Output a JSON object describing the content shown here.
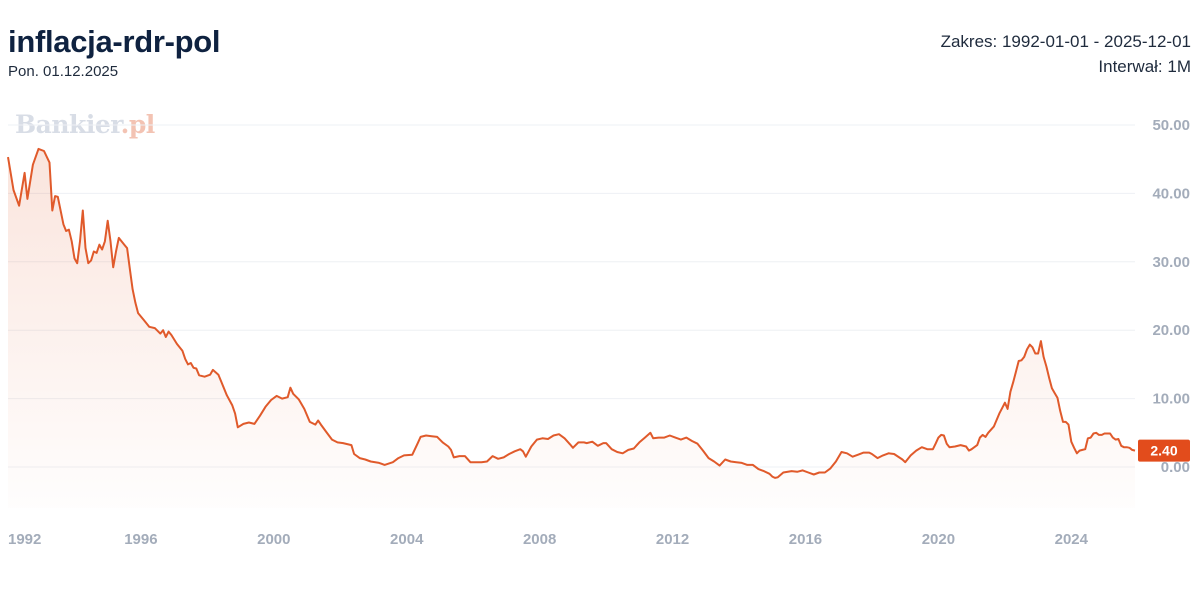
{
  "header": {
    "title": "inflacja-rdr-pol",
    "date": "Pon. 01.12.2025",
    "range": "Zakres: 1992-01-01 - 2025-12-01",
    "interval": "Interwał: 1M"
  },
  "watermark": {
    "text": "Bankier",
    "suffix": ".pl"
  },
  "colors": {
    "line": "#e05a2b",
    "label_bg": "#e24c1c",
    "tick": "#a3acba",
    "grid": "#eef0f4",
    "title": "#0f2240"
  },
  "chart_data": {
    "type": "area",
    "x_label": "",
    "y_label": "",
    "xlim": [
      "1992-01",
      "2025-12"
    ],
    "ylim": [
      -6,
      52
    ],
    "yticks": [
      0,
      10,
      20,
      30,
      40,
      50
    ],
    "ytick_labels": [
      "0.00",
      "10.00",
      "20.00",
      "30.00",
      "40.00",
      "50.00"
    ],
    "xticks": [
      "1992",
      "1996",
      "2000",
      "2004",
      "2008",
      "2012",
      "2016",
      "2020",
      "2024"
    ],
    "last_value_label": "2.40",
    "points": [
      [
        "1992-01",
        45.3
      ],
      [
        "1992-03",
        40.5
      ],
      [
        "1992-05",
        38.2
      ],
      [
        "1992-07",
        43.0
      ],
      [
        "1992-08",
        39.2
      ],
      [
        "1992-10",
        44.2
      ],
      [
        "1992-12",
        46.5
      ],
      [
        "1993-02",
        46.2
      ],
      [
        "1993-04",
        44.5
      ],
      [
        "1993-05",
        37.5
      ],
      [
        "1993-06",
        39.6
      ],
      [
        "1993-07",
        39.5
      ],
      [
        "1993-09",
        35.5
      ],
      [
        "1993-10",
        34.5
      ],
      [
        "1993-11",
        34.7
      ],
      [
        "1993-12",
        33.0
      ],
      [
        "1994-01",
        30.5
      ],
      [
        "1994-02",
        29.8
      ],
      [
        "1994-03",
        33.0
      ],
      [
        "1994-04",
        37.5
      ],
      [
        "1994-05",
        32.0
      ],
      [
        "1994-06",
        29.8
      ],
      [
        "1994-07",
        30.2
      ],
      [
        "1994-08",
        31.5
      ],
      [
        "1994-09",
        31.3
      ],
      [
        "1994-10",
        32.5
      ],
      [
        "1994-11",
        31.8
      ],
      [
        "1994-12",
        33.0
      ],
      [
        "1995-01",
        36.0
      ],
      [
        "1995-02",
        33.0
      ],
      [
        "1995-03",
        29.2
      ],
      [
        "1995-04",
        31.5
      ],
      [
        "1995-05",
        33.5
      ],
      [
        "1995-06",
        33.0
      ],
      [
        "1995-07",
        32.5
      ],
      [
        "1995-08",
        32.0
      ],
      [
        "1995-09",
        29.0
      ],
      [
        "1995-10",
        26.0
      ],
      [
        "1995-11",
        24.0
      ],
      [
        "1995-12",
        22.5
      ],
      [
        "1996-02",
        21.5
      ],
      [
        "1996-04",
        20.5
      ],
      [
        "1996-06",
        20.3
      ],
      [
        "1996-08",
        19.5
      ],
      [
        "1996-09",
        20.0
      ],
      [
        "1996-10",
        19.0
      ],
      [
        "1996-11",
        19.8
      ],
      [
        "1996-12",
        19.3
      ],
      [
        "1997-02",
        18.0
      ],
      [
        "1997-04",
        17.0
      ],
      [
        "1997-05",
        15.8
      ],
      [
        "1997-06",
        15.0
      ],
      [
        "1997-07",
        15.2
      ],
      [
        "1997-08",
        14.5
      ],
      [
        "1997-09",
        14.4
      ],
      [
        "1997-10",
        13.4
      ],
      [
        "1997-12",
        13.2
      ],
      [
        "1998-02",
        13.5
      ],
      [
        "1998-03",
        14.2
      ],
      [
        "1998-05",
        13.5
      ],
      [
        "1998-06",
        12.5
      ],
      [
        "1998-08",
        10.5
      ],
      [
        "1998-10",
        9.0
      ],
      [
        "1998-11",
        7.8
      ],
      [
        "1998-12",
        5.8
      ],
      [
        "1999-02",
        6.3
      ],
      [
        "1999-04",
        6.5
      ],
      [
        "1999-06",
        6.3
      ],
      [
        "1999-08",
        7.5
      ],
      [
        "1999-10",
        8.8
      ],
      [
        "1999-12",
        9.8
      ],
      [
        "2000-02",
        10.4
      ],
      [
        "2000-04",
        10.0
      ],
      [
        "2000-06",
        10.2
      ],
      [
        "2000-07",
        11.6
      ],
      [
        "2000-08",
        10.7
      ],
      [
        "2000-10",
        9.9
      ],
      [
        "2000-12",
        8.5
      ],
      [
        "2001-02",
        6.6
      ],
      [
        "2001-04",
        6.2
      ],
      [
        "2001-05",
        6.8
      ],
      [
        "2001-06",
        6.2
      ],
      [
        "2001-08",
        5.1
      ],
      [
        "2001-10",
        4.0
      ],
      [
        "2001-12",
        3.6
      ],
      [
        "2002-02",
        3.5
      ],
      [
        "2002-05",
        3.2
      ],
      [
        "2002-06",
        1.9
      ],
      [
        "2002-08",
        1.3
      ],
      [
        "2002-10",
        1.1
      ],
      [
        "2002-12",
        0.8
      ],
      [
        "2003-03",
        0.6
      ],
      [
        "2003-05",
        0.3
      ],
      [
        "2003-08",
        0.7
      ],
      [
        "2003-10",
        1.3
      ],
      [
        "2003-12",
        1.7
      ],
      [
        "2004-03",
        1.8
      ],
      [
        "2004-05",
        3.5
      ],
      [
        "2004-06",
        4.4
      ],
      [
        "2004-08",
        4.6
      ],
      [
        "2004-10",
        4.5
      ],
      [
        "2004-12",
        4.4
      ],
      [
        "2005-02",
        3.6
      ],
      [
        "2005-04",
        3.0
      ],
      [
        "2005-05",
        2.5
      ],
      [
        "2005-06",
        1.4
      ],
      [
        "2005-08",
        1.6
      ],
      [
        "2005-10",
        1.6
      ],
      [
        "2005-12",
        0.7
      ],
      [
        "2006-02",
        0.7
      ],
      [
        "2006-04",
        0.7
      ],
      [
        "2006-06",
        0.8
      ],
      [
        "2006-08",
        1.6
      ],
      [
        "2006-10",
        1.2
      ],
      [
        "2006-12",
        1.4
      ],
      [
        "2007-02",
        1.9
      ],
      [
        "2007-04",
        2.3
      ],
      [
        "2007-06",
        2.6
      ],
      [
        "2007-07",
        2.3
      ],
      [
        "2007-08",
        1.5
      ],
      [
        "2007-10",
        3.0
      ],
      [
        "2007-12",
        4.0
      ],
      [
        "2008-02",
        4.2
      ],
      [
        "2008-04",
        4.1
      ],
      [
        "2008-06",
        4.6
      ],
      [
        "2008-08",
        4.8
      ],
      [
        "2008-10",
        4.2
      ],
      [
        "2008-12",
        3.3
      ],
      [
        "2009-01",
        2.8
      ],
      [
        "2009-03",
        3.6
      ],
      [
        "2009-05",
        3.6
      ],
      [
        "2009-06",
        3.5
      ],
      [
        "2009-08",
        3.7
      ],
      [
        "2009-10",
        3.1
      ],
      [
        "2009-12",
        3.5
      ],
      [
        "2010-01",
        3.5
      ],
      [
        "2010-03",
        2.6
      ],
      [
        "2010-05",
        2.2
      ],
      [
        "2010-07",
        2.0
      ],
      [
        "2010-09",
        2.5
      ],
      [
        "2010-11",
        2.7
      ],
      [
        "2011-01",
        3.6
      ],
      [
        "2011-03",
        4.3
      ],
      [
        "2011-05",
        5.0
      ],
      [
        "2011-06",
        4.2
      ],
      [
        "2011-08",
        4.3
      ],
      [
        "2011-10",
        4.3
      ],
      [
        "2011-12",
        4.6
      ],
      [
        "2012-02",
        4.3
      ],
      [
        "2012-04",
        4.0
      ],
      [
        "2012-06",
        4.3
      ],
      [
        "2012-08",
        3.8
      ],
      [
        "2012-10",
        3.4
      ],
      [
        "2012-12",
        2.4
      ],
      [
        "2013-02",
        1.3
      ],
      [
        "2013-04",
        0.8
      ],
      [
        "2013-06",
        0.2
      ],
      [
        "2013-08",
        1.1
      ],
      [
        "2013-10",
        0.8
      ],
      [
        "2013-12",
        0.7
      ],
      [
        "2014-02",
        0.6
      ],
      [
        "2014-04",
        0.3
      ],
      [
        "2014-06",
        0.3
      ],
      [
        "2014-08",
        -0.3
      ],
      [
        "2014-10",
        -0.6
      ],
      [
        "2014-12",
        -1.0
      ],
      [
        "2015-01",
        -1.4
      ],
      [
        "2015-02",
        -1.6
      ],
      [
        "2015-03",
        -1.5
      ],
      [
        "2015-05",
        -0.8
      ],
      [
        "2015-08",
        -0.6
      ],
      [
        "2015-10",
        -0.7
      ],
      [
        "2015-12",
        -0.5
      ],
      [
        "2016-02",
        -0.8
      ],
      [
        "2016-04",
        -1.1
      ],
      [
        "2016-06",
        -0.8
      ],
      [
        "2016-08",
        -0.8
      ],
      [
        "2016-10",
        -0.2
      ],
      [
        "2016-12",
        0.8
      ],
      [
        "2017-02",
        2.2
      ],
      [
        "2017-04",
        2.0
      ],
      [
        "2017-06",
        1.5
      ],
      [
        "2017-08",
        1.8
      ],
      [
        "2017-10",
        2.1
      ],
      [
        "2017-12",
        2.1
      ],
      [
        "2018-01",
        1.9
      ],
      [
        "2018-03",
        1.3
      ],
      [
        "2018-05",
        1.7
      ],
      [
        "2018-07",
        2.0
      ],
      [
        "2018-09",
        1.9
      ],
      [
        "2018-12",
        1.1
      ],
      [
        "2019-01",
        0.7
      ],
      [
        "2019-03",
        1.7
      ],
      [
        "2019-05",
        2.4
      ],
      [
        "2019-07",
        2.9
      ],
      [
        "2019-09",
        2.6
      ],
      [
        "2019-11",
        2.6
      ],
      [
        "2019-12",
        3.4
      ],
      [
        "2020-01",
        4.3
      ],
      [
        "2020-02",
        4.7
      ],
      [
        "2020-03",
        4.6
      ],
      [
        "2020-04",
        3.4
      ],
      [
        "2020-05",
        2.9
      ],
      [
        "2020-07",
        3.0
      ],
      [
        "2020-09",
        3.2
      ],
      [
        "2020-11",
        3.0
      ],
      [
        "2020-12",
        2.4
      ],
      [
        "2021-01",
        2.6
      ],
      [
        "2021-03",
        3.2
      ],
      [
        "2021-04",
        4.3
      ],
      [
        "2021-05",
        4.7
      ],
      [
        "2021-06",
        4.4
      ],
      [
        "2021-07",
        5.0
      ],
      [
        "2021-09",
        5.9
      ],
      [
        "2021-11",
        7.8
      ],
      [
        "2021-12",
        8.6
      ],
      [
        "2022-01",
        9.4
      ],
      [
        "2022-02",
        8.5
      ],
      [
        "2022-03",
        11.0
      ],
      [
        "2022-04",
        12.4
      ],
      [
        "2022-05",
        13.9
      ],
      [
        "2022-06",
        15.5
      ],
      [
        "2022-07",
        15.6
      ],
      [
        "2022-08",
        16.1
      ],
      [
        "2022-09",
        17.2
      ],
      [
        "2022-10",
        17.9
      ],
      [
        "2022-11",
        17.5
      ],
      [
        "2022-12",
        16.6
      ],
      [
        "2023-01",
        16.6
      ],
      [
        "2023-02",
        18.4
      ],
      [
        "2023-03",
        16.1
      ],
      [
        "2023-04",
        14.7
      ],
      [
        "2023-05",
        13.0
      ],
      [
        "2023-06",
        11.5
      ],
      [
        "2023-07",
        10.8
      ],
      [
        "2023-08",
        10.1
      ],
      [
        "2023-09",
        8.2
      ],
      [
        "2023-10",
        6.6
      ],
      [
        "2023-11",
        6.6
      ],
      [
        "2023-12",
        6.2
      ],
      [
        "2024-01",
        3.7
      ],
      [
        "2024-02",
        2.8
      ],
      [
        "2024-03",
        2.0
      ],
      [
        "2024-04",
        2.4
      ],
      [
        "2024-05",
        2.5
      ],
      [
        "2024-06",
        2.6
      ],
      [
        "2024-07",
        4.2
      ],
      [
        "2024-08",
        4.3
      ],
      [
        "2024-09",
        4.9
      ],
      [
        "2024-10",
        5.0
      ],
      [
        "2024-11",
        4.7
      ],
      [
        "2024-12",
        4.7
      ],
      [
        "2025-01",
        4.9
      ],
      [
        "2025-02",
        4.9
      ],
      [
        "2025-03",
        4.9
      ],
      [
        "2025-04",
        4.3
      ],
      [
        "2025-05",
        4.0
      ],
      [
        "2025-06",
        4.1
      ],
      [
        "2025-07",
        3.1
      ],
      [
        "2025-08",
        2.9
      ],
      [
        "2025-09",
        2.9
      ],
      [
        "2025-10",
        2.8
      ],
      [
        "2025-11",
        2.5
      ],
      [
        "2025-12",
        2.4
      ]
    ]
  }
}
